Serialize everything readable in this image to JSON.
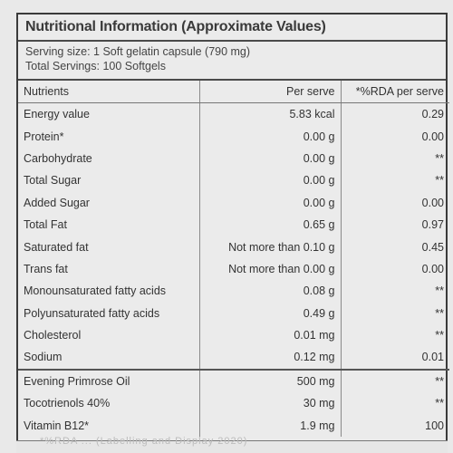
{
  "label": {
    "title": "Nutritional Information (Approximate Values)",
    "serving_size": "Serving size: 1 Soft gelatin capsule (790 mg)",
    "total_servings": "Total Servings: 100 Softgels",
    "headers": {
      "nutrients": "Nutrients",
      "per_serve": "Per serve",
      "rda": "*%RDA per serve"
    },
    "rows": [
      {
        "name": "Energy value",
        "per_serve": "5.83 kcal",
        "rda": "0.29"
      },
      {
        "name": "Protein*",
        "per_serve": "0.00 g",
        "rda": "0.00"
      },
      {
        "name": "Carbohydrate",
        "per_serve": "0.00 g",
        "rda": "**"
      },
      {
        "name": "Total Sugar",
        "per_serve": "0.00 g",
        "rda": "**"
      },
      {
        "name": "Added Sugar",
        "per_serve": "0.00 g",
        "rda": "0.00"
      },
      {
        "name": "Total Fat",
        "per_serve": "0.65 g",
        "rda": "0.97"
      },
      {
        "name": "Saturated fat",
        "per_serve": "Not more than 0.10 g",
        "rda": "0.45"
      },
      {
        "name": "Trans fat",
        "per_serve": "Not more than 0.00 g",
        "rda": "0.00"
      },
      {
        "name": "Monounsaturated fatty acids",
        "per_serve": "0.08 g",
        "rda": "**"
      },
      {
        "name": "Polyunsaturated fatty acids",
        "per_serve": "0.49 g",
        "rda": "**"
      },
      {
        "name": "Cholesterol",
        "per_serve": "0.01 mg",
        "rda": "**"
      },
      {
        "name": "Sodium",
        "per_serve": "0.12 mg",
        "rda": "0.01"
      }
    ],
    "extra_rows": [
      {
        "name": "Evening Primrose Oil",
        "per_serve": "500 mg",
        "rda": "**"
      },
      {
        "name": "Tocotrienols 40%",
        "per_serve": "30 mg",
        "rda": "**"
      },
      {
        "name": "Vitamin B12*",
        "per_serve": "1.9 mg",
        "rda": "100"
      }
    ],
    "footnote_partial": "*%RDA ... (Labelling and Display 2020)"
  },
  "colors": {
    "background": "#e9e9e9",
    "border": "#3a3a3a",
    "text": "#2a2a2a"
  }
}
